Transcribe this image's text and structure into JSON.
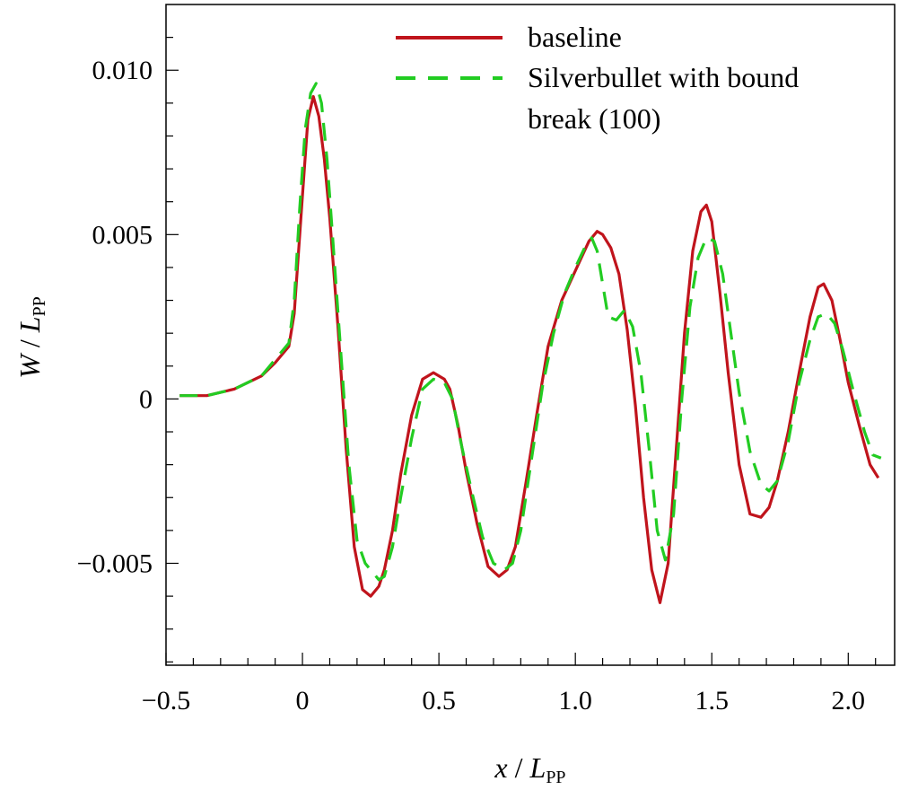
{
  "chart_data": {
    "type": "line",
    "title": "",
    "xlabel": {
      "var": "x",
      "sep": " / ",
      "main": "L",
      "sub": "PP"
    },
    "ylabel": {
      "var": "W",
      "sep": " / ",
      "main": "L",
      "sub": "PP"
    },
    "xlim": [
      -0.5,
      2.17
    ],
    "ylim": [
      -0.0081,
      0.012
    ],
    "xticks": [
      {
        "value": -0.5,
        "label": "−0.5"
      },
      {
        "value": 0,
        "label": "0"
      },
      {
        "value": 0.5,
        "label": "0.5"
      },
      {
        "value": 1.0,
        "label": "1.0"
      },
      {
        "value": 1.5,
        "label": "1.5"
      },
      {
        "value": 2.0,
        "label": "2.0"
      }
    ],
    "yticks": [
      {
        "value": -0.005,
        "label": "−0.005"
      },
      {
        "value": 0,
        "label": "0"
      },
      {
        "value": 0.005,
        "label": "0.005"
      },
      {
        "value": 0.01,
        "label": "0.010"
      }
    ],
    "grid": false,
    "legend_position": "top-right",
    "series": [
      {
        "name": "baseline",
        "color": "#c0141c",
        "style": "solid",
        "x": [
          -0.45,
          -0.35,
          -0.25,
          -0.15,
          -0.1,
          -0.05,
          -0.03,
          0.0,
          0.02,
          0.04,
          0.06,
          0.08,
          0.1,
          0.13,
          0.16,
          0.19,
          0.22,
          0.25,
          0.28,
          0.3,
          0.33,
          0.36,
          0.4,
          0.44,
          0.48,
          0.52,
          0.54,
          0.57,
          0.6,
          0.64,
          0.68,
          0.72,
          0.75,
          0.78,
          0.82,
          0.86,
          0.9,
          0.95,
          1.0,
          1.05,
          1.08,
          1.1,
          1.13,
          1.16,
          1.19,
          1.22,
          1.25,
          1.28,
          1.31,
          1.34,
          1.37,
          1.4,
          1.43,
          1.46,
          1.48,
          1.5,
          1.53,
          1.56,
          1.6,
          1.64,
          1.68,
          1.71,
          1.74,
          1.78,
          1.82,
          1.86,
          1.89,
          1.91,
          1.94,
          1.97,
          2.0,
          2.04,
          2.08,
          2.11
        ],
        "y": [
          0.0001,
          0.0001,
          0.0003,
          0.0007,
          0.0011,
          0.0016,
          0.0026,
          0.0062,
          0.0085,
          0.0092,
          0.0086,
          0.0073,
          0.0055,
          0.0022,
          -0.0015,
          -0.0045,
          -0.0058,
          -0.006,
          -0.0057,
          -0.0052,
          -0.004,
          -0.0023,
          -0.0005,
          0.0006,
          0.0008,
          0.0006,
          0.0003,
          -0.0008,
          -0.0022,
          -0.0038,
          -0.0051,
          -0.0054,
          -0.0052,
          -0.0045,
          -0.0025,
          -0.0004,
          0.0016,
          0.003,
          0.0039,
          0.0048,
          0.0051,
          0.005,
          0.0046,
          0.0038,
          0.0021,
          -0.0002,
          -0.003,
          -0.0052,
          -0.0062,
          -0.005,
          -0.0015,
          0.002,
          0.0045,
          0.0057,
          0.0059,
          0.0054,
          0.0032,
          0.0008,
          -0.002,
          -0.0035,
          -0.0036,
          -0.0033,
          -0.0025,
          -0.001,
          0.0008,
          0.0025,
          0.0034,
          0.0035,
          0.003,
          0.0018,
          0.0005,
          -0.0008,
          -0.002,
          -0.0024
        ]
      },
      {
        "name": "Silverbullet with bound break (100)",
        "color": "#22cc22",
        "style": "dashed",
        "x": [
          -0.45,
          -0.35,
          -0.25,
          -0.15,
          -0.1,
          -0.05,
          -0.03,
          -0.01,
          0.01,
          0.03,
          0.05,
          0.07,
          0.09,
          0.11,
          0.14,
          0.17,
          0.2,
          0.23,
          0.26,
          0.28,
          0.3,
          0.33,
          0.36,
          0.4,
          0.44,
          0.48,
          0.52,
          0.55,
          0.58,
          0.62,
          0.66,
          0.7,
          0.74,
          0.77,
          0.8,
          0.84,
          0.88,
          0.92,
          0.96,
          1.0,
          1.04,
          1.06,
          1.08,
          1.1,
          1.12,
          1.15,
          1.18,
          1.21,
          1.24,
          1.27,
          1.3,
          1.33,
          1.36,
          1.39,
          1.42,
          1.45,
          1.48,
          1.51,
          1.54,
          1.57,
          1.6,
          1.64,
          1.68,
          1.71,
          1.74,
          1.78,
          1.82,
          1.86,
          1.89,
          1.92,
          1.95,
          1.98,
          2.02,
          2.06,
          2.09,
          2.12
        ],
        "y": [
          0.0001,
          0.0001,
          0.0003,
          0.0007,
          0.0012,
          0.0017,
          0.003,
          0.0058,
          0.0082,
          0.0093,
          0.0096,
          0.009,
          0.0073,
          0.005,
          0.0015,
          -0.002,
          -0.0043,
          -0.005,
          -0.0053,
          -0.0055,
          -0.0054,
          -0.0045,
          -0.003,
          -0.0012,
          0.0003,
          0.0006,
          0.0005,
          0.0,
          -0.0013,
          -0.0028,
          -0.0042,
          -0.005,
          -0.0052,
          -0.005,
          -0.004,
          -0.0018,
          0.0004,
          0.002,
          0.0032,
          0.004,
          0.0047,
          0.0049,
          0.0045,
          0.0035,
          0.0025,
          0.0024,
          0.0027,
          0.0022,
          0.0008,
          -0.0015,
          -0.004,
          -0.0049,
          -0.0035,
          0.0,
          0.0028,
          0.0043,
          0.0049,
          0.0048,
          0.0038,
          0.002,
          0.0002,
          -0.0016,
          -0.0026,
          -0.0028,
          -0.0025,
          -0.0013,
          0.0005,
          0.0018,
          0.0025,
          0.0026,
          0.0023,
          0.0015,
          0.0002,
          -0.001,
          -0.0017,
          -0.0018
        ]
      }
    ]
  }
}
